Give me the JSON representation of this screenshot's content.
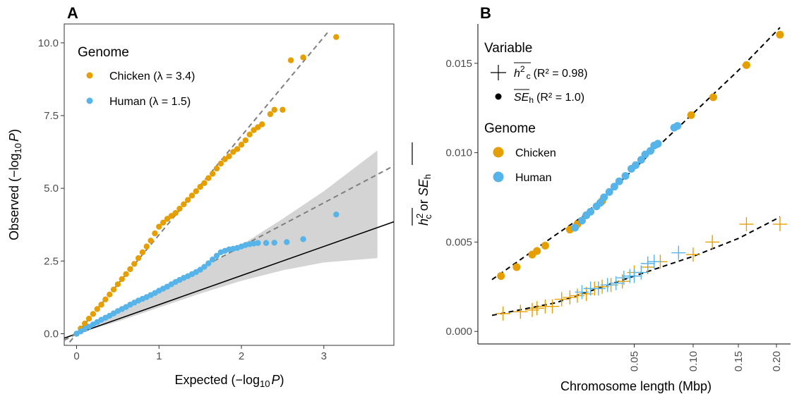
{
  "colors": {
    "chicken": "#E69F00",
    "human": "#56B4E9",
    "band": "#d4d4d4",
    "dashed": "#7f7f7f"
  },
  "chart_data": [
    {
      "panel": "A",
      "type": "scatter",
      "xlabel_prefix": "Expected (",
      "xlabel_log": "−log",
      "xlabel_sub": "10",
      "xlabel_var": "P",
      "xlabel_suffix": ")",
      "ylabel_prefix": "Observed (",
      "ylabel_log": "−log",
      "ylabel_sub": "10",
      "ylabel_var": "P",
      "ylabel_suffix": ")",
      "xlim": [
        -0.15,
        3.85
      ],
      "ylim": [
        -0.4,
        10.65
      ],
      "xticks": [
        0,
        1,
        2,
        3
      ],
      "xtick_labels": [
        "0",
        "1",
        "2",
        "3"
      ],
      "yticks": [
        0,
        2.5,
        5,
        7.5,
        10
      ],
      "ytick_labels": [
        "0.0",
        "2.5",
        "5.0",
        "7.5",
        "10.0"
      ],
      "legend_title": "Genome",
      "legend_placement": "top-left",
      "legend_entries": [
        {
          "label": "Chicken (λ = 3.4)",
          "color": "#E69F00"
        },
        {
          "label": "Human (λ = 1.5)",
          "color": "#56B4E9"
        }
      ],
      "reference_line_slope": 1,
      "confidence_band": {
        "x": [
          0,
          0.5,
          1,
          1.5,
          2,
          2.5,
          3,
          3.65
        ],
        "upper": [
          0.05,
          0.72,
          1.45,
          2.2,
          3.05,
          3.95,
          4.9,
          6.3
        ],
        "lower": [
          0.0,
          0.42,
          0.9,
          1.38,
          1.82,
          2.18,
          2.45,
          2.6
        ]
      },
      "fit_lines": [
        {
          "name": "Chicken",
          "slope": 3.4,
          "intercept": 0.0,
          "x_range": [
            0,
            3.05
          ]
        },
        {
          "name": "Human",
          "slope": 1.5,
          "intercept": 0.0,
          "x_range": [
            0,
            3.85
          ]
        }
      ],
      "series": [
        {
          "name": "Chicken",
          "points": [
            [
              0,
              0.0
            ],
            [
              0.05,
              0.18
            ],
            [
              0.1,
              0.35
            ],
            [
              0.15,
              0.52
            ],
            [
              0.2,
              0.68
            ],
            [
              0.25,
              0.85
            ],
            [
              0.3,
              1.0
            ],
            [
              0.35,
              1.18
            ],
            [
              0.4,
              1.35
            ],
            [
              0.45,
              1.52
            ],
            [
              0.5,
              1.7
            ],
            [
              0.55,
              1.88
            ],
            [
              0.6,
              2.05
            ],
            [
              0.65,
              2.22
            ],
            [
              0.7,
              2.4
            ],
            [
              0.75,
              2.6
            ],
            [
              0.8,
              2.8
            ],
            [
              0.85,
              3.0
            ],
            [
              0.9,
              3.2
            ],
            [
              0.95,
              3.45
            ],
            [
              1.0,
              3.68
            ],
            [
              1.05,
              3.82
            ],
            [
              1.1,
              3.95
            ],
            [
              1.15,
              4.05
            ],
            [
              1.2,
              4.15
            ],
            [
              1.25,
              4.3
            ],
            [
              1.3,
              4.45
            ],
            [
              1.35,
              4.6
            ],
            [
              1.4,
              4.75
            ],
            [
              1.45,
              4.9
            ],
            [
              1.5,
              5.05
            ],
            [
              1.55,
              5.18
            ],
            [
              1.6,
              5.35
            ],
            [
              1.65,
              5.5
            ],
            [
              1.7,
              5.68
            ],
            [
              1.75,
              5.85
            ],
            [
              1.8,
              6.0
            ],
            [
              1.85,
              6.1
            ],
            [
              1.9,
              6.25
            ],
            [
              1.95,
              6.35
            ],
            [
              2.0,
              6.5
            ],
            [
              2.05,
              6.65
            ],
            [
              2.1,
              6.85
            ],
            [
              2.15,
              7.0
            ],
            [
              2.2,
              7.1
            ],
            [
              2.25,
              7.2
            ],
            [
              2.35,
              7.55
            ],
            [
              2.4,
              7.7
            ],
            [
              2.5,
              7.7
            ],
            [
              2.6,
              9.4
            ],
            [
              2.75,
              9.5
            ],
            [
              3.15,
              10.2
            ]
          ]
        },
        {
          "name": "Human",
          "points": [
            [
              0,
              0.0
            ],
            [
              0.05,
              0.08
            ],
            [
              0.1,
              0.16
            ],
            [
              0.15,
              0.24
            ],
            [
              0.2,
              0.32
            ],
            [
              0.25,
              0.4
            ],
            [
              0.3,
              0.48
            ],
            [
              0.35,
              0.55
            ],
            [
              0.4,
              0.62
            ],
            [
              0.45,
              0.7
            ],
            [
              0.5,
              0.78
            ],
            [
              0.55,
              0.85
            ],
            [
              0.6,
              0.92
            ],
            [
              0.65,
              1.0
            ],
            [
              0.7,
              1.07
            ],
            [
              0.75,
              1.14
            ],
            [
              0.8,
              1.2
            ],
            [
              0.85,
              1.26
            ],
            [
              0.9,
              1.33
            ],
            [
              0.95,
              1.4
            ],
            [
              1.0,
              1.48
            ],
            [
              1.05,
              1.55
            ],
            [
              1.1,
              1.62
            ],
            [
              1.15,
              1.7
            ],
            [
              1.2,
              1.78
            ],
            [
              1.25,
              1.85
            ],
            [
              1.3,
              1.92
            ],
            [
              1.35,
              1.98
            ],
            [
              1.4,
              2.05
            ],
            [
              1.45,
              2.12
            ],
            [
              1.5,
              2.2
            ],
            [
              1.55,
              2.3
            ],
            [
              1.6,
              2.42
            ],
            [
              1.65,
              2.55
            ],
            [
              1.7,
              2.68
            ],
            [
              1.75,
              2.8
            ],
            [
              1.8,
              2.85
            ],
            [
              1.85,
              2.9
            ],
            [
              1.9,
              2.92
            ],
            [
              1.95,
              2.95
            ],
            [
              2.0,
              3.0
            ],
            [
              2.05,
              3.05
            ],
            [
              2.1,
              3.08
            ],
            [
              2.15,
              3.1
            ],
            [
              2.2,
              3.12
            ],
            [
              2.3,
              3.12
            ],
            [
              2.4,
              3.13
            ],
            [
              2.55,
              3.15
            ],
            [
              2.75,
              3.25
            ],
            [
              3.15,
              4.1
            ]
          ]
        }
      ]
    },
    {
      "panel": "B",
      "type": "scatter",
      "xlabel": "Chromosome length (Mbp)",
      "x_scale": "sqrt",
      "xlim": [
        0.0,
        0.205
      ],
      "ylim": [
        -0.0007,
        0.0172
      ],
      "xticks": [
        0.05,
        0.1,
        0.15,
        0.2
      ],
      "xtick_labels": [
        "0.05",
        "0.10",
        "0.15",
        "0.20"
      ],
      "yticks": [
        0.0,
        0.005,
        0.01,
        0.015
      ],
      "ytick_labels": [
        "0.000",
        "0.005",
        "0.010",
        "0.015"
      ],
      "ylabel_parts": [
        "h",
        "2",
        "c",
        " or ",
        "SE",
        "h"
      ],
      "legend_placement": "top-left",
      "variable_legend": {
        "title": "Variable",
        "entries": [
          {
            "symbol": "plus",
            "label_main": "h",
            "label_sup": "2",
            "label_sub": "c",
            "r2_text": "(R² = 0.98)"
          },
          {
            "symbol": "dot",
            "label_main": "SE",
            "label_sub": "h",
            "r2_text": "(R² = 1.0)"
          }
        ]
      },
      "genome_legend": {
        "title": "Genome",
        "entries": [
          {
            "label": "Chicken",
            "color": "#E69F00"
          },
          {
            "label": "Human",
            "color": "#56B4E9"
          }
        ]
      },
      "series": [
        {
          "name": "SE_h Chicken",
          "marker": "dot",
          "points": [
            [
              0.0002,
              0.0031
            ],
            [
              0.0015,
              0.0036
            ],
            [
              0.004,
              0.0043
            ],
            [
              0.005,
              0.0045
            ],
            [
              0.007,
              0.0048
            ],
            [
              0.015,
              0.0057
            ],
            [
              0.018,
              0.006
            ],
            [
              0.022,
              0.0065
            ],
            [
              0.03,
              0.0073
            ],
            [
              0.098,
              0.0121
            ],
            [
              0.121,
              0.0131
            ],
            [
              0.16,
              0.0149
            ],
            [
              0.205,
              0.0166
            ]
          ]
        },
        {
          "name": "SE_h Human",
          "marker": "dot",
          "points": [
            [
              0.017,
              0.0058
            ],
            [
              0.02,
              0.0062
            ],
            [
              0.022,
              0.0065
            ],
            [
              0.024,
              0.0067
            ],
            [
              0.027,
              0.007
            ],
            [
              0.029,
              0.0072
            ],
            [
              0.031,
              0.0075
            ],
            [
              0.034,
              0.0078
            ],
            [
              0.037,
              0.0081
            ],
            [
              0.04,
              0.0084
            ],
            [
              0.044,
              0.0087
            ],
            [
              0.048,
              0.0091
            ],
            [
              0.051,
              0.0093
            ],
            [
              0.055,
              0.0096
            ],
            [
              0.058,
              0.0099
            ],
            [
              0.062,
              0.0101
            ],
            [
              0.065,
              0.0104
            ],
            [
              0.068,
              0.0105
            ],
            [
              0.082,
              0.0114
            ],
            [
              0.085,
              0.0115
            ]
          ]
        },
        {
          "name": "h2_c Chicken",
          "marker": "plus",
          "points": [
            [
              0.0003,
              0.001
            ],
            [
              0.002,
              0.0011
            ],
            [
              0.004,
              0.0012
            ],
            [
              0.005,
              0.0013
            ],
            [
              0.007,
              0.0014
            ],
            [
              0.009,
              0.0014
            ],
            [
              0.012,
              0.0018
            ],
            [
              0.015,
              0.0019
            ],
            [
              0.018,
              0.002
            ],
            [
              0.022,
              0.0021
            ],
            [
              0.026,
              0.0024
            ],
            [
              0.03,
              0.0025
            ],
            [
              0.035,
              0.0026
            ],
            [
              0.042,
              0.0028
            ],
            [
              0.05,
              0.0033
            ],
            [
              0.06,
              0.0036
            ],
            [
              0.07,
              0.0039
            ],
            [
              0.1,
              0.0043
            ],
            [
              0.12,
              0.005
            ],
            [
              0.16,
              0.006
            ],
            [
              0.205,
              0.006
            ]
          ]
        },
        {
          "name": "h2_c Human",
          "marker": "plus",
          "points": [
            [
              0.02,
              0.0022
            ],
            [
              0.024,
              0.0024
            ],
            [
              0.028,
              0.0024
            ],
            [
              0.033,
              0.0026
            ],
            [
              0.038,
              0.0027
            ],
            [
              0.043,
              0.003
            ],
            [
              0.047,
              0.0031
            ],
            [
              0.05,
              0.0031
            ],
            [
              0.055,
              0.0033
            ],
            [
              0.06,
              0.0038
            ],
            [
              0.065,
              0.0039
            ],
            [
              0.086,
              0.0044
            ]
          ]
        }
      ],
      "fit_lines": [
        {
          "name": "SE_h",
          "points": [
            [
              0.0,
              0.0029
            ],
            [
              0.01,
              0.0054
            ],
            [
              0.02,
              0.0064
            ],
            [
              0.05,
              0.0091
            ],
            [
              0.1,
              0.0122
            ],
            [
              0.15,
              0.0146
            ],
            [
              0.205,
              0.017
            ]
          ]
        },
        {
          "name": "h2_c",
          "points": [
            [
              0.0,
              0.0009
            ],
            [
              0.01,
              0.0016
            ],
            [
              0.02,
              0.0021
            ],
            [
              0.05,
              0.0031
            ],
            [
              0.1,
              0.0042
            ],
            [
              0.15,
              0.0052
            ],
            [
              0.205,
              0.0064
            ]
          ]
        }
      ]
    }
  ]
}
